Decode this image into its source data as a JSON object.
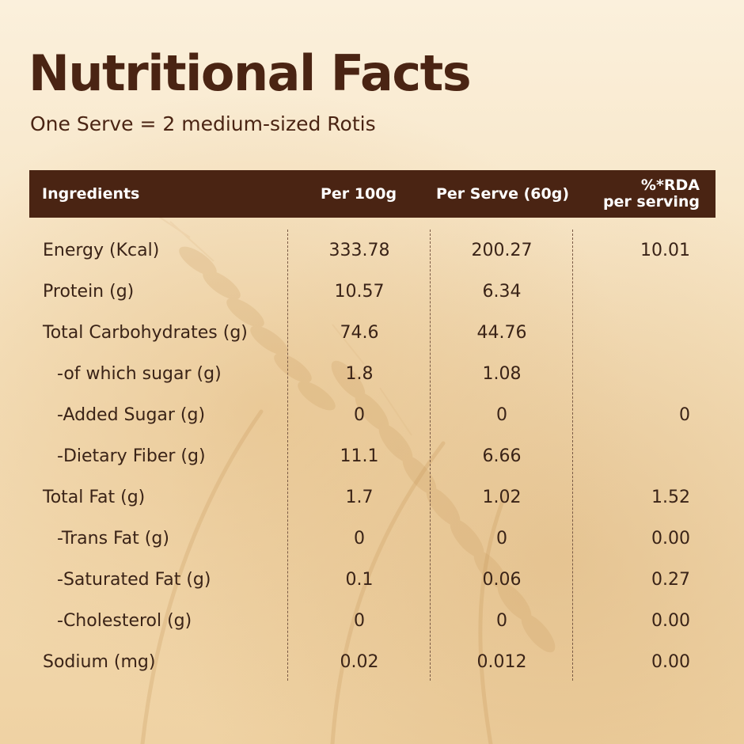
{
  "title": "Nutritional Facts",
  "subtitle": "One Serve = 2 medium-sized Rotis",
  "header": {
    "ingredients": "Ingredients",
    "per_100g": "Per 100g",
    "per_serve": "Per Serve (60g)",
    "rda_line1": "%*RDA",
    "rda_line2": "per serving"
  },
  "rows": [
    {
      "name": "Energy (Kcal)",
      "per_100g": "333.78",
      "per_serve": "200.27",
      "rda": "10.01",
      "indent": false
    },
    {
      "name": "Protein (g)",
      "per_100g": "10.57",
      "per_serve": "6.34",
      "rda": "",
      "indent": false
    },
    {
      "name": "Total Carbohydrates (g)",
      "per_100g": "74.6",
      "per_serve": "44.76",
      "rda": "",
      "indent": false
    },
    {
      "name": "-of which sugar (g)",
      "per_100g": "1.8",
      "per_serve": "1.08",
      "rda": "",
      "indent": true
    },
    {
      "name": "-Added Sugar (g)",
      "per_100g": "0",
      "per_serve": "0",
      "rda": "0",
      "indent": true
    },
    {
      "name": "-Dietary Fiber (g)",
      "per_100g": "11.1",
      "per_serve": "6.66",
      "rda": "",
      "indent": true
    },
    {
      "name": "Total Fat (g)",
      "per_100g": "1.7",
      "per_serve": "1.02",
      "rda": "1.52",
      "indent": false
    },
    {
      "name": "-Trans Fat (g)",
      "per_100g": "0",
      "per_serve": "0",
      "rda": "0.00",
      "indent": true
    },
    {
      "name": "-Saturated Fat (g)",
      "per_100g": "0.1",
      "per_serve": "0.06",
      "rda": "0.27",
      "indent": true
    },
    {
      "name": "-Cholesterol (g)",
      "per_100g": "0",
      "per_serve": "0",
      "rda": "0.00",
      "indent": true
    },
    {
      "name": "Sodium (mg)",
      "per_100g": "0.02",
      "per_serve": "0.012",
      "rda": "0.00",
      "indent": false
    }
  ],
  "colors": {
    "header_bg": "#4a2413",
    "title": "#4a2413",
    "text": "#3a2317",
    "background": "#f6e2bf"
  }
}
